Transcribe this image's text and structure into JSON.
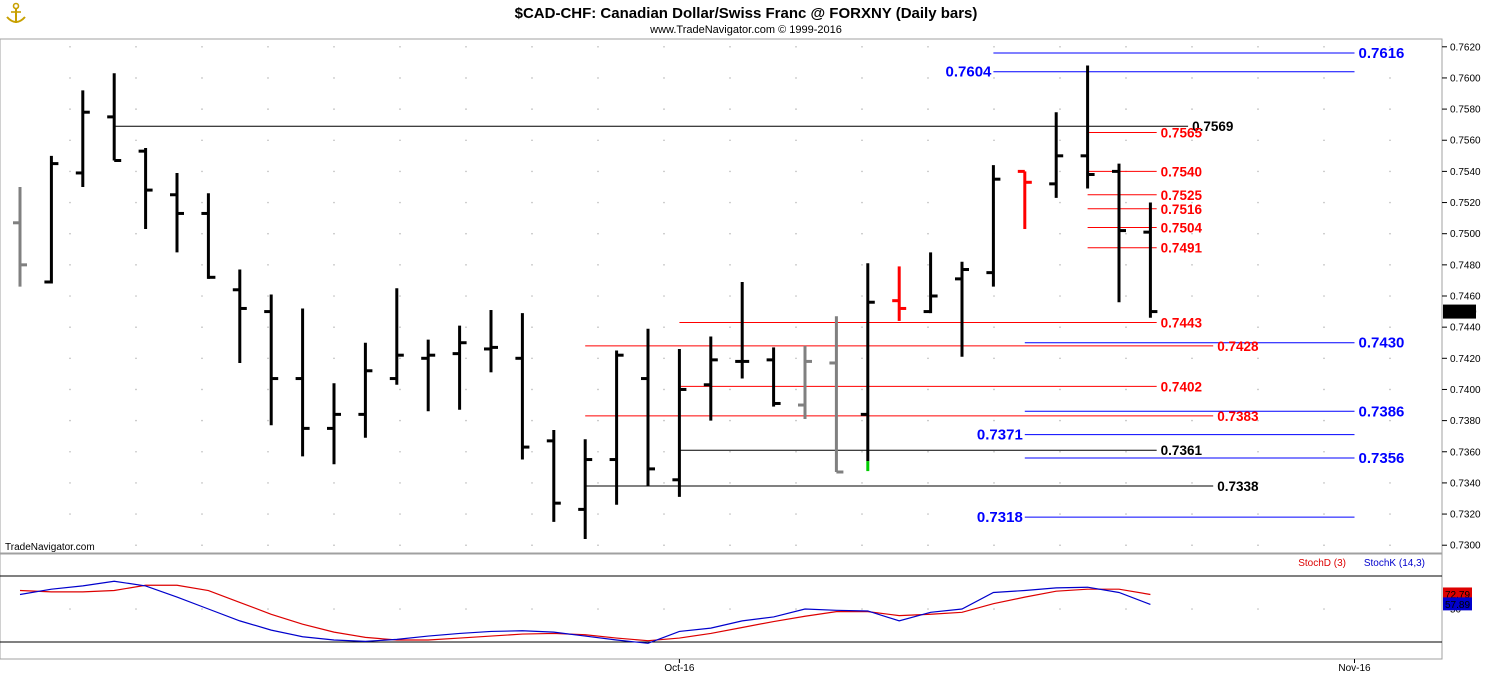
{
  "header": {
    "title": "$CAD-CHF:  Canadian Dollar/Swiss Franc @ FORXNY  (Daily bars)",
    "copyright": "www.TradeNavigator.com © 1999-2016",
    "watermark": "TradeNavigator.com",
    "logo": "anchor-logo-icon"
  },
  "colors": {
    "bar": "#000000",
    "bar_gray": "#808080",
    "bar_red": "#ff0000",
    "bar_green": "#00cc00",
    "level_red": "#ff0000",
    "level_blue": "#0000ff",
    "level_black": "#000000",
    "stoch_d": "#dd0000",
    "stoch_k": "#0000cc",
    "grid_dot": "#bbbbbb"
  },
  "chart_data": [
    {
      "type": "ohlc",
      "title": "$CAD-CHF:  Canadian Dollar/Swiss Franc @ FORXNY  (Daily bars)",
      "ylim": [
        0.7295,
        0.7625
      ],
      "y_ticks": [
        "0.7300",
        "0.7320",
        "0.7340",
        "0.7360",
        "0.7380",
        "0.7400",
        "0.7420",
        "0.7440",
        "0.7460",
        "0.7480",
        "0.7500",
        "0.7520",
        "0.7540",
        "0.7560",
        "0.7580",
        "0.7600",
        "0.7620"
      ],
      "x_ticks": [
        {
          "label": "Oct-16",
          "bar": 21
        },
        {
          "label": "Nov-16",
          "bar": 42.5
        }
      ],
      "last_price": "0.7450",
      "bars": [
        {
          "o": 0.7507,
          "h": 0.753,
          "l": 0.7466,
          "c": 0.748,
          "col": "gray"
        },
        {
          "o": 0.7469,
          "h": 0.755,
          "l": 0.7468,
          "c": 0.7545,
          "col": "black"
        },
        {
          "o": 0.7539,
          "h": 0.7592,
          "l": 0.753,
          "c": 0.7578,
          "col": "black"
        },
        {
          "o": 0.7575,
          "h": 0.7603,
          "l": 0.7547,
          "c": 0.7547,
          "col": "black"
        },
        {
          "o": 0.7553,
          "h": 0.7555,
          "l": 0.7503,
          "c": 0.7528,
          "col": "black"
        },
        {
          "o": 0.7525,
          "h": 0.7539,
          "l": 0.7488,
          "c": 0.7513,
          "col": "black"
        },
        {
          "o": 0.7513,
          "h": 0.7526,
          "l": 0.7471,
          "c": 0.7472,
          "col": "black"
        },
        {
          "o": 0.7464,
          "h": 0.7477,
          "l": 0.7417,
          "c": 0.7452,
          "col": "black"
        },
        {
          "o": 0.745,
          "h": 0.7461,
          "l": 0.7377,
          "c": 0.7407,
          "col": "black"
        },
        {
          "o": 0.7407,
          "h": 0.7452,
          "l": 0.7357,
          "c": 0.7375,
          "col": "black"
        },
        {
          "o": 0.7375,
          "h": 0.7404,
          "l": 0.7352,
          "c": 0.7384,
          "col": "black"
        },
        {
          "o": 0.7384,
          "h": 0.743,
          "l": 0.7369,
          "c": 0.7412,
          "col": "black"
        },
        {
          "o": 0.7407,
          "h": 0.7465,
          "l": 0.7403,
          "c": 0.7422,
          "col": "black"
        },
        {
          "o": 0.742,
          "h": 0.7432,
          "l": 0.7386,
          "c": 0.7422,
          "col": "black"
        },
        {
          "o": 0.7423,
          "h": 0.7441,
          "l": 0.7387,
          "c": 0.743,
          "col": "black"
        },
        {
          "o": 0.7426,
          "h": 0.7451,
          "l": 0.7411,
          "c": 0.7427,
          "col": "black"
        },
        {
          "o": 0.742,
          "h": 0.7449,
          "l": 0.7355,
          "c": 0.7363,
          "col": "black"
        },
        {
          "o": 0.7367,
          "h": 0.7374,
          "l": 0.7315,
          "c": 0.7327,
          "col": "black"
        },
        {
          "o": 0.7323,
          "h": 0.7368,
          "l": 0.7304,
          "c": 0.7355,
          "col": "black"
        },
        {
          "o": 0.7355,
          "h": 0.7425,
          "l": 0.7326,
          "c": 0.7422,
          "col": "black"
        },
        {
          "o": 0.7407,
          "h": 0.7439,
          "l": 0.7338,
          "c": 0.7349,
          "col": "black"
        },
        {
          "o": 0.7342,
          "h": 0.7426,
          "l": 0.7331,
          "c": 0.74,
          "col": "black"
        },
        {
          "o": 0.7403,
          "h": 0.7434,
          "l": 0.738,
          "c": 0.7419,
          "col": "black"
        },
        {
          "o": 0.7418,
          "h": 0.7469,
          "l": 0.7407,
          "c": 0.7418,
          "col": "black"
        },
        {
          "o": 0.7419,
          "h": 0.7427,
          "l": 0.7389,
          "c": 0.7391,
          "col": "black"
        },
        {
          "o": 0.739,
          "h": 0.7428,
          "l": 0.7381,
          "c": 0.7418,
          "col": "gray"
        },
        {
          "o": 0.7417,
          "h": 0.7447,
          "l": 0.7347,
          "c": 0.7347,
          "col": "gray"
        },
        {
          "o": 0.7384,
          "h": 0.7481,
          "l": 0.7354,
          "c": 0.7456,
          "col": "black",
          "low_marker": "green"
        },
        {
          "o": 0.7457,
          "h": 0.7479,
          "l": 0.7444,
          "c": 0.7452,
          "col": "red"
        },
        {
          "o": 0.745,
          "h": 0.7488,
          "l": 0.7449,
          "c": 0.746,
          "col": "black"
        },
        {
          "o": 0.7471,
          "h": 0.7482,
          "l": 0.7421,
          "c": 0.7477,
          "col": "black"
        },
        {
          "o": 0.7475,
          "h": 0.7544,
          "l": 0.7466,
          "c": 0.7535,
          "col": "black"
        },
        {
          "o": 0.754,
          "h": 0.754,
          "l": 0.7503,
          "c": 0.7533,
          "col": "red"
        },
        {
          "o": 0.7532,
          "h": 0.7578,
          "l": 0.7523,
          "c": 0.755,
          "col": "black"
        },
        {
          "o": 0.755,
          "h": 0.7608,
          "l": 0.7529,
          "c": 0.7538,
          "col": "black"
        },
        {
          "o": 0.754,
          "h": 0.7545,
          "l": 0.7456,
          "c": 0.7502,
          "col": "black"
        },
        {
          "o": 0.7501,
          "h": 0.752,
          "l": 0.7446,
          "c": 0.745,
          "col": "black"
        }
      ],
      "levels": [
        {
          "value": "0.7616",
          "color": "blue",
          "from_bar": 31,
          "to_bar": 42.5,
          "label_side": "right"
        },
        {
          "value": "0.7604",
          "color": "blue",
          "from_bar": 31,
          "to_bar": 42.5,
          "label_side": "left"
        },
        {
          "value": "0.7569",
          "color": "black",
          "from_bar": 3,
          "to_bar": 37.2,
          "label_side": "right"
        },
        {
          "value": "0.7565",
          "color": "red",
          "from_bar": 34,
          "to_bar": 36.2,
          "label_side": "right"
        },
        {
          "value": "0.7540",
          "color": "red",
          "from_bar": 34,
          "to_bar": 36.2,
          "label_side": "right"
        },
        {
          "value": "0.7525",
          "color": "red",
          "from_bar": 34,
          "to_bar": 36.2,
          "label_side": "right"
        },
        {
          "value": "0.7516",
          "color": "red",
          "from_bar": 34,
          "to_bar": 36.2,
          "label_side": "right"
        },
        {
          "value": "0.7504",
          "color": "red",
          "from_bar": 34,
          "to_bar": 36.2,
          "label_side": "right"
        },
        {
          "value": "0.7491",
          "color": "red",
          "from_bar": 34,
          "to_bar": 36.2,
          "label_side": "right"
        },
        {
          "value": "0.7443",
          "color": "red",
          "from_bar": 21,
          "to_bar": 36.2,
          "label_side": "right"
        },
        {
          "value": "0.7430",
          "color": "blue",
          "from_bar": 32,
          "to_bar": 42.5,
          "label_side": "right"
        },
        {
          "value": "0.7428",
          "color": "red",
          "from_bar": 18,
          "to_bar": 38,
          "label_side": "right"
        },
        {
          "value": "0.7402",
          "color": "red",
          "from_bar": 21,
          "to_bar": 36.2,
          "label_side": "right"
        },
        {
          "value": "0.7386",
          "color": "blue",
          "from_bar": 32,
          "to_bar": 42.5,
          "label_side": "right"
        },
        {
          "value": "0.7383",
          "color": "red",
          "from_bar": 18,
          "to_bar": 38,
          "label_side": "right"
        },
        {
          "value": "0.7371",
          "color": "blue",
          "from_bar": 32,
          "to_bar": 42.5,
          "label_side": "left"
        },
        {
          "value": "0.7361",
          "color": "black",
          "from_bar": 21,
          "to_bar": 36.2,
          "label_side": "right"
        },
        {
          "value": "0.7356",
          "color": "blue",
          "from_bar": 32,
          "to_bar": 42.5,
          "label_side": "right"
        },
        {
          "value": "0.7338",
          "color": "black",
          "from_bar": 18,
          "to_bar": 38,
          "label_side": "right"
        },
        {
          "value": "0.7318",
          "color": "blue",
          "from_bar": 32,
          "to_bar": 42.5,
          "label_side": "left"
        }
      ]
    },
    {
      "type": "line",
      "ylim": [
        0,
        100
      ],
      "y_ticks": [
        "50"
      ],
      "series": [
        {
          "name": "StochD (3)",
          "color": "red",
          "last_label": "72.79",
          "values": [
            78,
            76,
            76,
            78,
            86,
            86,
            78,
            60,
            42,
            27,
            15,
            7,
            3,
            3,
            6,
            9,
            12,
            13,
            11,
            6,
            2,
            6,
            13,
            22,
            31,
            39,
            46,
            46,
            40,
            42,
            45,
            58,
            68,
            77,
            80,
            80,
            72
          ]
        },
        {
          "name": "StochK (14,3)",
          "color": "blue",
          "last_label": "57.89",
          "values": [
            72,
            80,
            85,
            92,
            85,
            68,
            50,
            32,
            18,
            8,
            3,
            1,
            4,
            9,
            13,
            16,
            17,
            15,
            9,
            3,
            -2,
            16,
            21,
            32,
            38,
            50,
            48,
            47,
            32,
            45,
            50,
            75,
            78,
            82,
            83,
            75,
            57
          ]
        }
      ]
    }
  ]
}
